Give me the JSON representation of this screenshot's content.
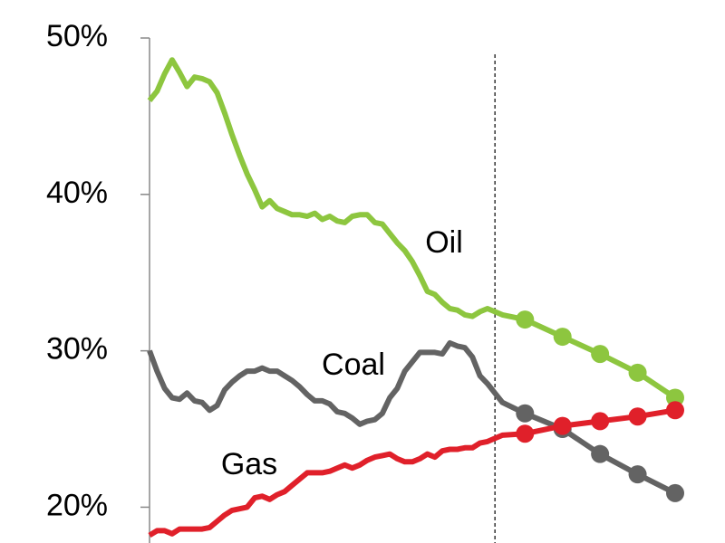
{
  "chart_data": {
    "type": "line",
    "x": [
      0,
      1,
      2,
      3,
      4,
      5,
      6,
      7,
      8,
      9,
      10,
      11,
      12,
      13,
      14,
      15,
      16,
      17,
      18,
      19,
      20,
      21,
      22,
      23,
      24,
      25,
      26,
      27,
      28,
      29,
      30,
      31,
      32,
      33,
      34,
      35,
      36,
      37,
      38,
      39,
      40,
      41,
      42,
      43,
      44,
      45,
      46,
      47,
      50,
      55,
      60,
      65,
      70
    ],
    "xlim": [
      0,
      70
    ],
    "ylim": [
      18,
      50
    ],
    "yticks": [
      {
        "value": 20,
        "label": "20%"
      },
      {
        "value": 30,
        "label": "30%"
      },
      {
        "value": 40,
        "label": "40%"
      },
      {
        "value": 50,
        "label": "50%"
      }
    ],
    "vline_x": 46,
    "markers_from_x": 50,
    "series": [
      {
        "name": "Oil",
        "color": "#8dc63f",
        "values": [
          46.0,
          46.6,
          47.7,
          48.6,
          47.8,
          46.9,
          47.5,
          47.4,
          47.2,
          46.5,
          45.2,
          43.8,
          42.5,
          41.3,
          40.3,
          39.2,
          39.6,
          39.1,
          38.9,
          38.7,
          38.7,
          38.6,
          38.8,
          38.4,
          38.6,
          38.3,
          38.2,
          38.6,
          38.7,
          38.7,
          38.2,
          38.1,
          37.5,
          36.9,
          36.4,
          35.7,
          34.8,
          33.8,
          33.6,
          33.1,
          32.7,
          32.6,
          32.3,
          32.2,
          32.5,
          32.7,
          32.5,
          32.3,
          32.0,
          30.9,
          29.8,
          28.6,
          27.0
        ]
      },
      {
        "name": "Coal",
        "color": "#636363",
        "values": [
          30.0,
          28.7,
          27.6,
          27.0,
          26.9,
          27.3,
          26.8,
          26.7,
          26.2,
          26.5,
          27.5,
          28.0,
          28.4,
          28.7,
          28.7,
          28.9,
          28.7,
          28.7,
          28.4,
          28.1,
          27.7,
          27.2,
          26.8,
          26.8,
          26.6,
          26.1,
          26.0,
          25.7,
          25.3,
          25.5,
          25.6,
          26.0,
          27.0,
          27.6,
          28.7,
          29.3,
          29.9,
          29.9,
          29.9,
          29.8,
          30.5,
          30.3,
          30.2,
          29.6,
          28.4,
          27.9,
          27.3,
          26.7,
          26.0,
          25.0,
          23.4,
          22.1,
          20.9
        ]
      },
      {
        "name": "Gas",
        "color": "#e0202a",
        "values": [
          18.2,
          18.5,
          18.5,
          18.3,
          18.6,
          18.6,
          18.6,
          18.6,
          18.7,
          19.1,
          19.5,
          19.8,
          19.9,
          20.0,
          20.6,
          20.7,
          20.5,
          20.8,
          21.0,
          21.4,
          21.8,
          22.2,
          22.2,
          22.2,
          22.3,
          22.5,
          22.7,
          22.5,
          22.7,
          23.0,
          23.2,
          23.3,
          23.4,
          23.1,
          22.9,
          22.9,
          23.1,
          23.4,
          23.2,
          23.6,
          23.7,
          23.7,
          23.8,
          23.8,
          24.1,
          24.2,
          24.4,
          24.6,
          24.7,
          25.2,
          25.5,
          25.8,
          26.2
        ]
      }
    ]
  }
}
